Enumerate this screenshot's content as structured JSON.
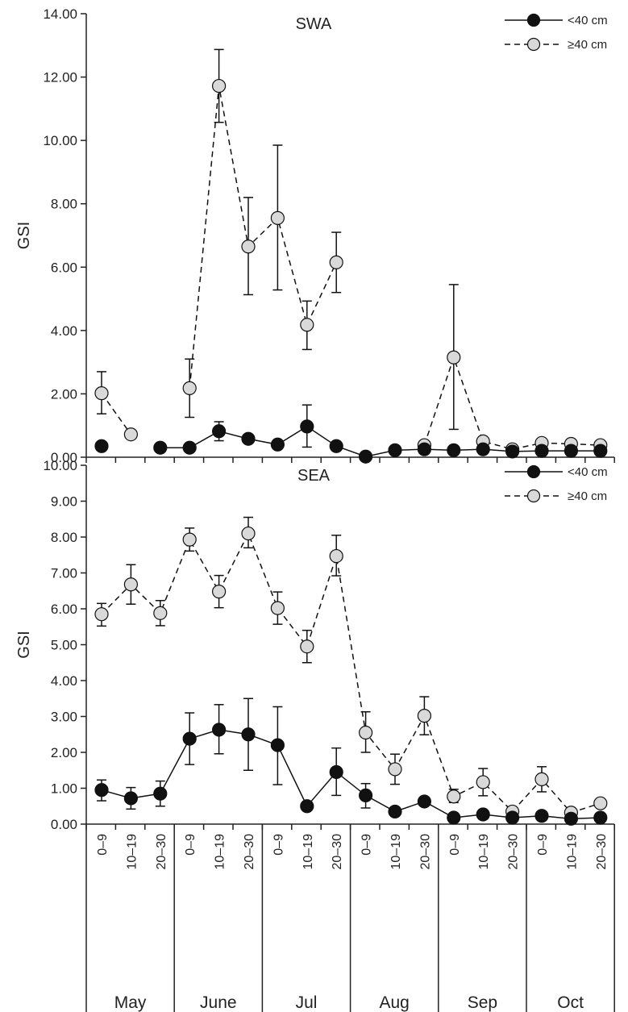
{
  "chart_data": [
    {
      "type": "line",
      "panel_label": "SWA",
      "ylabel": "GSI",
      "ylim": [
        0,
        14
      ],
      "yticks": [
        "0.00",
        "2.00",
        "4.00",
        "6.00",
        "8.00",
        "10.00",
        "12.00",
        "14.00"
      ],
      "grid": false,
      "legend_placement": "top-right",
      "series": [
        {
          "name": "<40 cm",
          "style": "solid-filled",
          "values": [
            0.35,
            null,
            0.3,
            0.3,
            0.82,
            0.58,
            0.4,
            0.97,
            0.35,
            0.02,
            0.22,
            0.25,
            0.22,
            0.25,
            0.18,
            0.2,
            0.2,
            0.2
          ],
          "err_up": [
            0,
            0,
            0,
            0,
            0.3,
            0,
            0,
            0.68,
            0,
            0,
            0,
            0,
            0,
            0,
            0,
            0,
            0,
            0
          ],
          "err_down": [
            0,
            0,
            0,
            0,
            0.3,
            0,
            0,
            0.65,
            0,
            0,
            0,
            0,
            0,
            0,
            0,
            0,
            0,
            0
          ]
        },
        {
          "name": "≥40 cm",
          "style": "dashed-open",
          "values": [
            2.02,
            0.72,
            null,
            2.18,
            11.72,
            6.65,
            7.55,
            4.18,
            6.15,
            null,
            null,
            0.38,
            3.15,
            0.5,
            0.25,
            0.45,
            0.42,
            0.38
          ],
          "err_up": [
            0.68,
            0,
            0,
            0.92,
            1.15,
            1.55,
            2.3,
            0.75,
            0.95,
            0,
            0,
            0,
            2.3,
            0,
            0,
            0,
            0,
            0
          ],
          "err_down": [
            0.65,
            0,
            0,
            0.92,
            1.15,
            1.52,
            2.27,
            0.78,
            0.95,
            0,
            0,
            0,
            2.27,
            0,
            0,
            0,
            0,
            0
          ]
        }
      ]
    },
    {
      "type": "line",
      "panel_label": "SEA",
      "ylabel": "GSI",
      "ylim": [
        0,
        10
      ],
      "yticks": [
        "0.00",
        "1.00",
        "2.00",
        "3.00",
        "4.00",
        "5.00",
        "6.00",
        "7.00",
        "8.00",
        "9.00",
        "10.00"
      ],
      "grid": false,
      "legend_placement": "top-right",
      "categories": [
        "0–9",
        "10–19",
        "20–30",
        "0–9",
        "10–19",
        "20–30",
        "0–9",
        "10–19",
        "20–30",
        "0–9",
        "10–19",
        "20–30",
        "0–9",
        "10–19",
        "20–30",
        "0–9",
        "10–19",
        "20–30"
      ],
      "months": [
        "May",
        "June",
        "Jul",
        "Aug",
        "Sep",
        "Oct"
      ],
      "series": [
        {
          "name": "<40 cm",
          "style": "solid-filled",
          "values": [
            0.95,
            0.72,
            0.85,
            2.38,
            2.63,
            2.5,
            2.2,
            0.5,
            1.45,
            0.8,
            0.35,
            0.63,
            0.18,
            0.27,
            0.18,
            0.23,
            0.15,
            0.18
          ],
          "err_up": [
            0.28,
            0.3,
            0.35,
            0.72,
            0.7,
            1.0,
            1.07,
            0,
            0.67,
            0.33,
            0,
            0,
            0,
            0,
            0,
            0,
            0,
            0
          ],
          "err_down": [
            0.3,
            0.3,
            0.35,
            0.72,
            0.67,
            1.0,
            1.1,
            0,
            0.65,
            0.35,
            0,
            0,
            0,
            0,
            0,
            0,
            0,
            0
          ]
        },
        {
          "name": "≥40 cm",
          "style": "dashed-open",
          "values": [
            5.85,
            6.68,
            5.88,
            7.93,
            6.48,
            8.1,
            6.02,
            4.95,
            7.47,
            2.55,
            1.53,
            3.02,
            0.77,
            1.17,
            0.35,
            1.25,
            0.32,
            0.58
          ],
          "err_up": [
            0.3,
            0.55,
            0.35,
            0.32,
            0.45,
            0.45,
            0.45,
            0.45,
            0.58,
            0.58,
            0.42,
            0.53,
            0.2,
            0.38,
            0,
            0.35,
            0,
            0
          ],
          "err_down": [
            0.33,
            0.55,
            0.35,
            0.32,
            0.45,
            0.4,
            0.45,
            0.45,
            0.55,
            0.55,
            0.42,
            0.53,
            0.17,
            0.38,
            0,
            0.35,
            0,
            0
          ]
        }
      ]
    }
  ]
}
